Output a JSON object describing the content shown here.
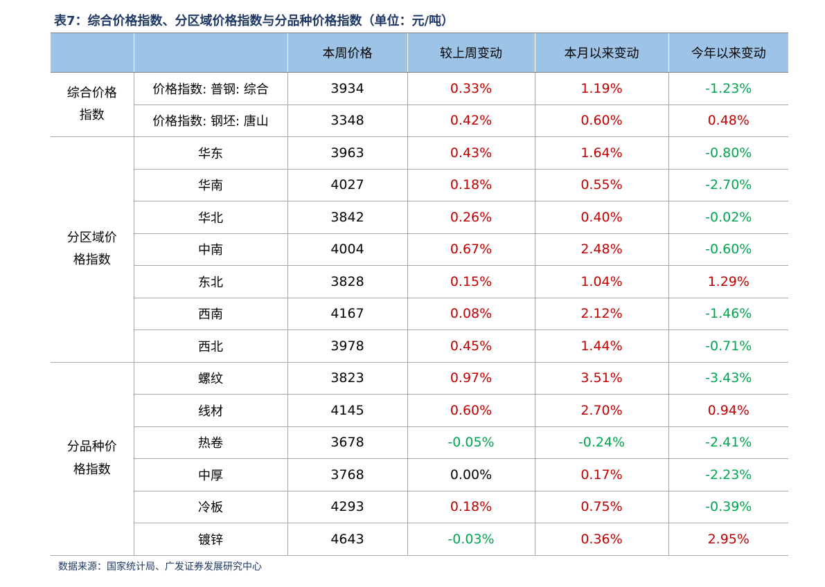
{
  "title": "表7：综合价格指数、分区域价格指数与分品种价格指数（单位：元/吨）",
  "table": {
    "columns": [
      "本周价格",
      "较上周变动",
      "本月以来变动",
      "今年以来变动"
    ],
    "groups": [
      {
        "label": "综合价格指数",
        "rows": [
          [
            "价格指数: 普钢: 综合",
            "3934",
            "0.33%",
            "1.19%",
            "-1.23%"
          ],
          [
            "价格指数: 钢坯: 唐山",
            "3348",
            "0.42%",
            "0.60%",
            "0.48%"
          ]
        ]
      },
      {
        "label": "分区域价格指数",
        "rows": [
          [
            "华东",
            "3963",
            "0.43%",
            "1.64%",
            "-0.80%"
          ],
          [
            "华南",
            "4027",
            "0.18%",
            "0.55%",
            "-2.70%"
          ],
          [
            "华北",
            "3842",
            "0.26%",
            "0.40%",
            "-0.02%"
          ],
          [
            "中南",
            "4004",
            "0.67%",
            "2.48%",
            "-0.60%"
          ],
          [
            "东北",
            "3828",
            "0.15%",
            "1.04%",
            "1.29%"
          ],
          [
            "西南",
            "4167",
            "0.08%",
            "2.12%",
            "-1.46%"
          ],
          [
            "西北",
            "3978",
            "0.45%",
            "1.44%",
            "-0.71%"
          ]
        ]
      },
      {
        "label": "分品种价格指数",
        "rows": [
          [
            "螺纹",
            "3823",
            "0.97%",
            "3.51%",
            "-3.43%"
          ],
          [
            "线材",
            "4145",
            "0.60%",
            "2.70%",
            "0.94%"
          ],
          [
            "热卷",
            "3678",
            "-0.05%",
            "-0.24%",
            "-2.41%"
          ],
          [
            "中厚",
            "3768",
            "0.00%",
            "0.17%",
            "-2.23%"
          ],
          [
            "冷板",
            "4293",
            "0.18%",
            "0.75%",
            "-0.39%"
          ],
          [
            "镀锌",
            "4643",
            "-0.03%",
            "0.36%",
            "2.95%"
          ]
        ]
      }
    ]
  },
  "source": "数据来源：国家统计局、广发证券发展研究中心"
}
